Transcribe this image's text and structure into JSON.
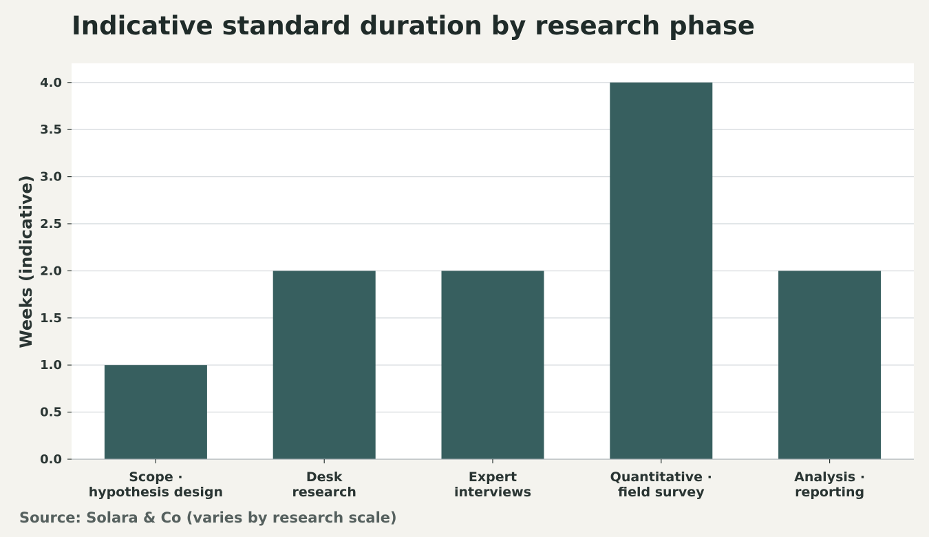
{
  "chart_data": {
    "type": "bar",
    "title": "Indicative standard duration by research phase",
    "xlabel": "",
    "ylabel": "Weeks (indicative)",
    "categories": [
      [
        "Scope ·",
        "hypothesis design"
      ],
      [
        "Desk",
        "research"
      ],
      [
        "Expert",
        "interviews"
      ],
      [
        "Quantitative ·",
        "field survey"
      ],
      [
        "Analysis ·",
        "reporting"
      ]
    ],
    "values": [
      1.0,
      2.0,
      2.0,
      4.0,
      2.0
    ],
    "ylim": [
      0,
      4.1
    ],
    "yticks": [
      "0.0",
      "0.5",
      "1.0",
      "1.5",
      "2.0",
      "2.5",
      "3.0",
      "3.5",
      "4.0"
    ],
    "grid": true,
    "legend": "none",
    "source": "Source: Solara & Co (varies by research scale)",
    "colors": {
      "bar": "#375f5f",
      "grid": "#d9dde0",
      "plot_bg": "#ffffff",
      "page_bg": "#f4f3ee"
    }
  }
}
